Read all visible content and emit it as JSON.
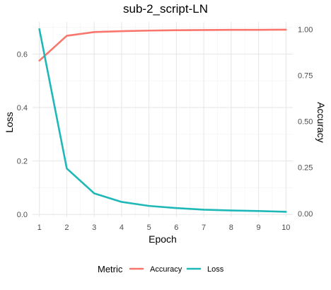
{
  "chart_data": {
    "type": "line",
    "title": "sub-2_script-LN",
    "xlabel": "Epoch",
    "ylabel_left": "Loss",
    "ylabel_right": "Accuracy",
    "x": [
      1,
      2,
      3,
      4,
      5,
      6,
      7,
      8,
      9,
      10
    ],
    "xlim": [
      0.75,
      10.25
    ],
    "x_ticks": [
      "1",
      "2",
      "3",
      "4",
      "5",
      "6",
      "7",
      "8",
      "9",
      "10"
    ],
    "ylim_left": [
      -0.01,
      0.72
    ],
    "y_ticks_left": [
      "0.0",
      "0.2",
      "0.4",
      "0.6"
    ],
    "ylim_right": [
      -0.02,
      1.04
    ],
    "y_ticks_right": [
      "0.00",
      "0.25",
      "0.50",
      "0.75",
      "1.00"
    ],
    "grid": true,
    "legend": {
      "title": "Metric",
      "position": "bottom"
    },
    "series": [
      {
        "name": "Accuracy",
        "axis": "right",
        "color": "#F8766D",
        "values": [
          0.83,
          0.965,
          0.985,
          0.99,
          0.993,
          0.995,
          0.996,
          0.997,
          0.997,
          0.998
        ]
      },
      {
        "name": "Loss",
        "axis": "left",
        "color": "#1FB8B8",
        "values": [
          0.693,
          0.172,
          0.079,
          0.047,
          0.032,
          0.024,
          0.018,
          0.015,
          0.013,
          0.01
        ]
      }
    ]
  }
}
